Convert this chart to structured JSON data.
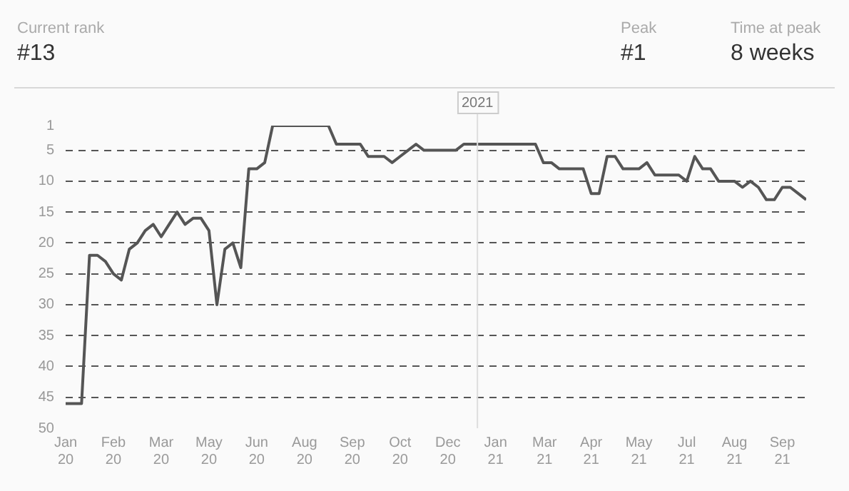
{
  "chart_data": {
    "type": "line",
    "annotations": [
      "Current rank",
      "#13",
      "Peak",
      "#1",
      "Time at peak",
      "8 weeks"
    ],
    "x": [
      "2020-01-05",
      "2020-01-12",
      "2020-01-19",
      "2020-01-26",
      "2020-02-02",
      "2020-02-09",
      "2020-02-16",
      "2020-02-23",
      "2020-03-01",
      "2020-03-08",
      "2020-03-15",
      "2020-03-22",
      "2020-03-29",
      "2020-04-05",
      "2020-04-12",
      "2020-04-19",
      "2020-04-26",
      "2020-05-03",
      "2020-05-10",
      "2020-05-17",
      "2020-05-24",
      "2020-05-31",
      "2020-06-07",
      "2020-06-14",
      "2020-06-21",
      "2020-06-28",
      "2020-07-05",
      "2020-07-12",
      "2020-07-19",
      "2020-07-26",
      "2020-08-02",
      "2020-08-09",
      "2020-08-16",
      "2020-08-23",
      "2020-08-30",
      "2020-09-06",
      "2020-09-13",
      "2020-09-20",
      "2020-09-27",
      "2020-10-04",
      "2020-10-11",
      "2020-10-18",
      "2020-10-25",
      "2020-11-01",
      "2020-11-08",
      "2020-11-15",
      "2020-11-22",
      "2020-11-29",
      "2020-12-06",
      "2020-12-13",
      "2020-12-20",
      "2020-12-27",
      "2021-01-03",
      "2021-01-10",
      "2021-01-17",
      "2021-01-24",
      "2021-01-31",
      "2021-02-07",
      "2021-02-14",
      "2021-02-21",
      "2021-02-28",
      "2021-03-07",
      "2021-03-14",
      "2021-03-21",
      "2021-03-28",
      "2021-04-04",
      "2021-04-11",
      "2021-04-18",
      "2021-04-25",
      "2021-05-02",
      "2021-05-09",
      "2021-05-16",
      "2021-05-23",
      "2021-05-30",
      "2021-06-06",
      "2021-06-13",
      "2021-06-20",
      "2021-06-27",
      "2021-07-04",
      "2021-07-11",
      "2021-07-18",
      "2021-07-25",
      "2021-08-01",
      "2021-08-08",
      "2021-08-15",
      "2021-08-22",
      "2021-08-29",
      "2021-09-05",
      "2021-09-12",
      "2021-09-19",
      "2021-09-26",
      "2021-10-03",
      "2021-10-10",
      "2021-10-17"
    ],
    "values": [
      46,
      46,
      46,
      22,
      22,
      23,
      25,
      26,
      21,
      20,
      18,
      17,
      19,
      17,
      15,
      17,
      16,
      16,
      18,
      30,
      21,
      20,
      24,
      8,
      8,
      7,
      1,
      1,
      1,
      1,
      1,
      1,
      1,
      1,
      4,
      4,
      4,
      4,
      6,
      6,
      6,
      7,
      6,
      5,
      4,
      5,
      5,
      5,
      5,
      5,
      4,
      4,
      4,
      4,
      4,
      4,
      4,
      4,
      4,
      4,
      7,
      7,
      8,
      8,
      8,
      8,
      12,
      12,
      6,
      6,
      8,
      8,
      8,
      7,
      9,
      9,
      9,
      9,
      10,
      6,
      8,
      8,
      10,
      10,
      10,
      11,
      10,
      11,
      13,
      13,
      11,
      11,
      12,
      13
    ],
    "color": "#555555",
    "line_style": "solid",
    "xlim": [
      "2020-01-05",
      "2021-10-17"
    ],
    "xticks": [
      {
        "value": "2020-01-05",
        "label": "Jan 20"
      },
      {
        "value": "2020-02-16",
        "label": "Feb 20"
      },
      {
        "value": "2020-03-29",
        "label": "Mar 20"
      },
      {
        "value": "2020-05-10",
        "label": "May 20"
      },
      {
        "value": "2020-06-21",
        "label": "Jun 20"
      },
      {
        "value": "2020-08-02",
        "label": "Aug 20"
      },
      {
        "value": "2020-09-13",
        "label": "Sep 20"
      },
      {
        "value": "2020-10-25",
        "label": "Oct 20"
      },
      {
        "value": "2020-12-06",
        "label": "Dec 20"
      },
      {
        "value": "2021-01-17",
        "label": "Jan 21"
      },
      {
        "value": "2021-03-01",
        "label": "Mar 21"
      },
      {
        "value": "2021-04-11",
        "label": "Apr 21"
      },
      {
        "value": "2021-05-23",
        "label": "May 21"
      },
      {
        "value": "2021-07-04",
        "label": "Jul 21"
      },
      {
        "value": "2021-08-15",
        "label": "Aug 21"
      },
      {
        "value": "2021-09-26",
        "label": "Sep 21"
      }
    ],
    "ylim": [
      50,
      1
    ],
    "yticks": [
      1,
      5,
      10,
      15,
      20,
      25,
      30,
      35,
      40,
      45,
      50
    ],
    "grid": "y",
    "ref_lines": [
      {
        "axis": "x",
        "value": "2021-01-01",
        "label": "2021",
        "color": "#dddddd"
      }
    ]
  }
}
